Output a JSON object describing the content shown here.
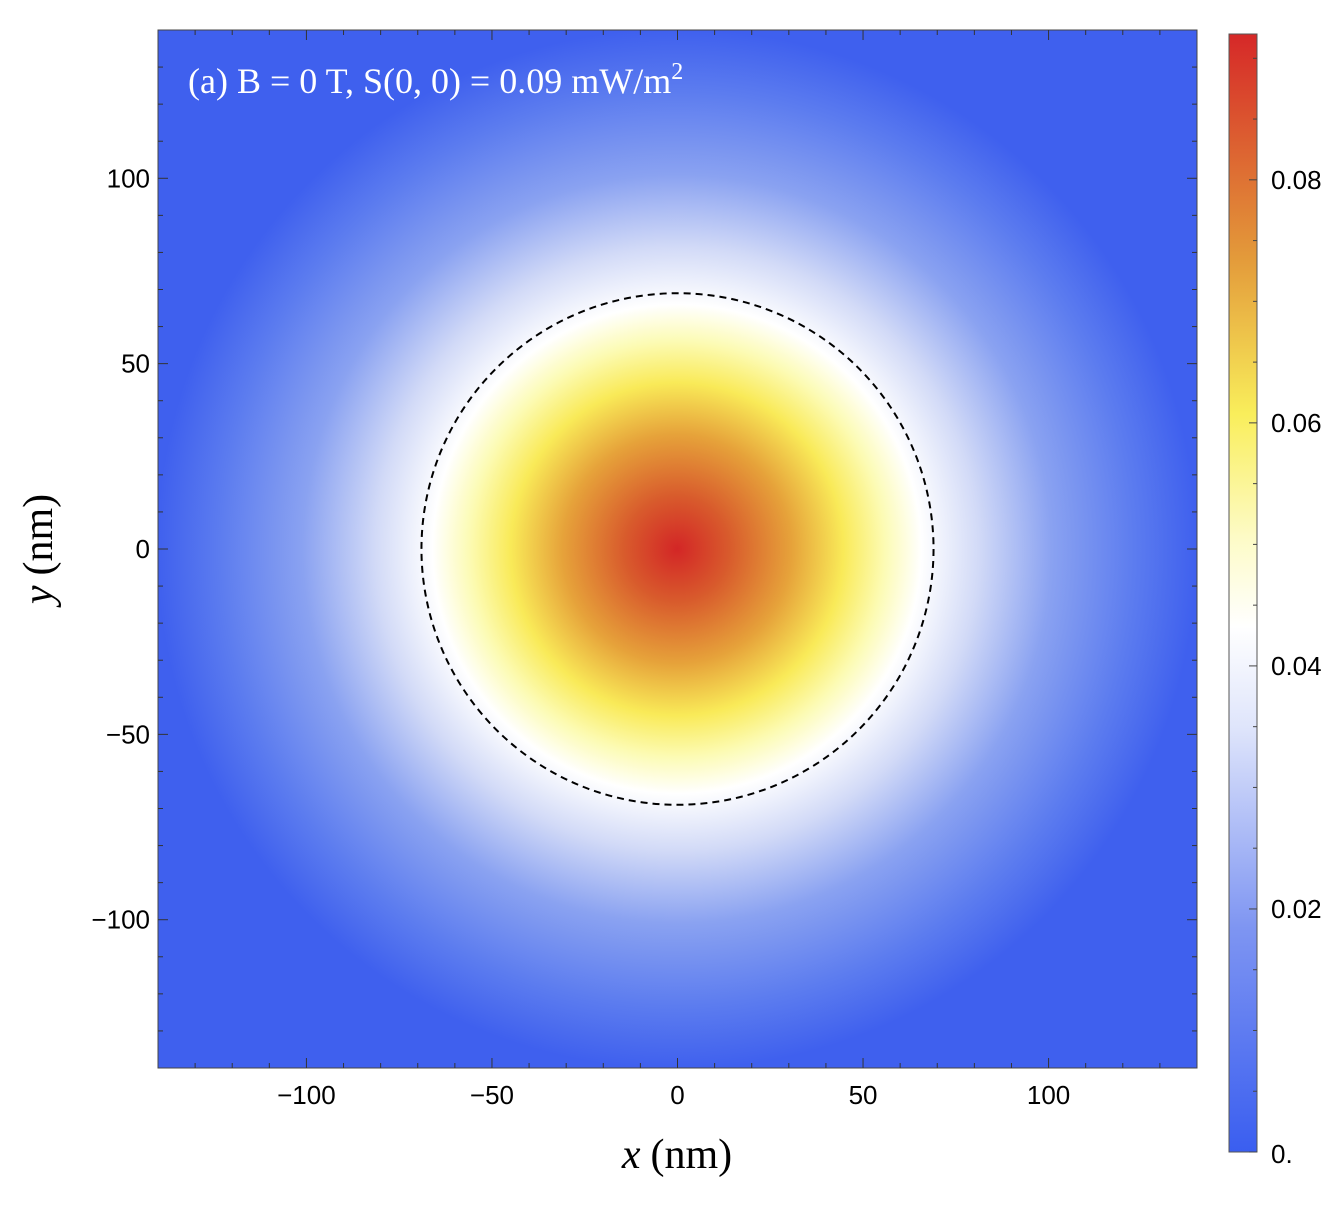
{
  "chart_data": {
    "type": "heatmap",
    "annotation": {
      "prefix": "(a) B = 0 T, S(0, 0) = 0.09 mW/m",
      "superscript": "2"
    },
    "xlabel": {
      "var": "x",
      "unit": "(nm)"
    },
    "ylabel": {
      "var": "y",
      "unit": "(nm)"
    },
    "xlim": [
      -140,
      140
    ],
    "ylim": [
      -140,
      140
    ],
    "x_ticks": [
      -100,
      -50,
      0,
      50,
      100
    ],
    "x_tick_labels": [
      "−100",
      "−50",
      "0",
      "50",
      "100"
    ],
    "y_ticks": [
      100,
      50,
      0,
      -50,
      -100
    ],
    "y_tick_labels": [
      "100",
      "50",
      "0",
      "−50",
      "−100"
    ],
    "field": {
      "description": "radially symmetric Gaussian intensity",
      "peak_value": 0.092,
      "center": [
        0,
        0
      ],
      "value_at_r70": 0.046,
      "value_at_r100": 0.024
    },
    "contour": {
      "style": "dashed",
      "radius": 69,
      "color": "#000000"
    },
    "colorbar": {
      "range": [
        0,
        0.092
      ],
      "ticks": [
        0.08,
        0.06,
        0.04,
        0.02,
        0
      ],
      "tick_labels": [
        "0.08",
        "0.06",
        "0.04",
        "0.02",
        "0."
      ],
      "colors": [
        "#3a5ef0",
        "#7e95f2",
        "#ffffff",
        "#fbf35c",
        "#e39a3a",
        "#d62828"
      ]
    }
  }
}
